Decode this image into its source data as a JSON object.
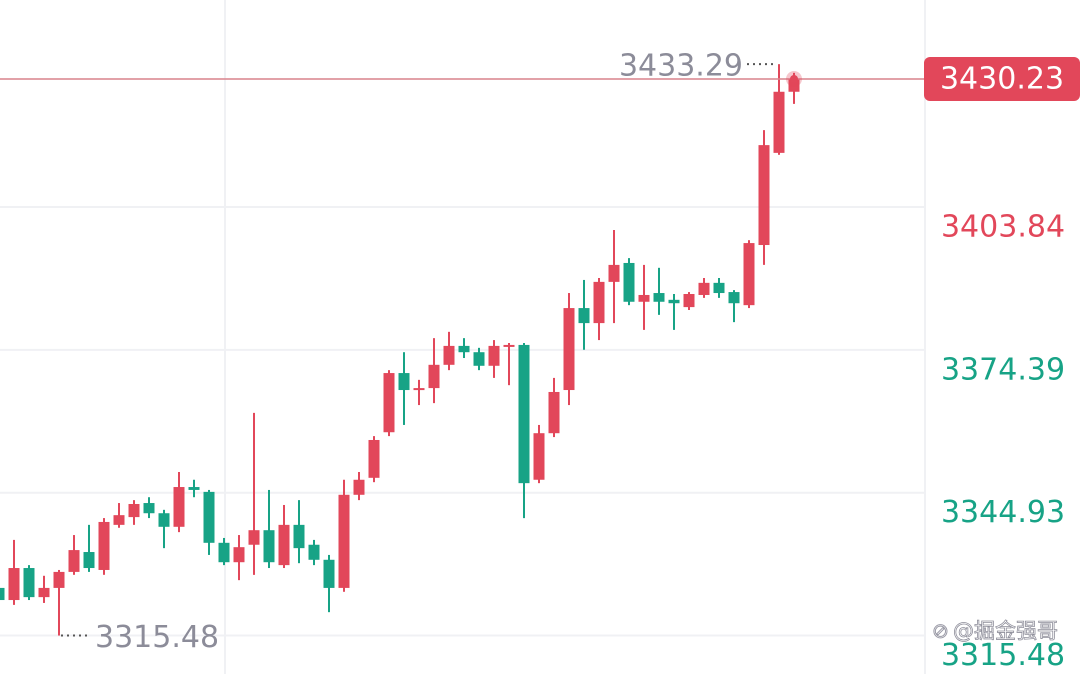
{
  "chart_data": {
    "type": "candlestick",
    "up_color": "#e2475a",
    "down_color": "#17a386",
    "ylim": [
      3307.55,
      3446.52
    ],
    "yticks": [
      3315.48,
      3344.93,
      3374.39,
      3403.84
    ],
    "ytick_colors": [
      "#17a386",
      "#17a386",
      "#17a386",
      "#e2475a"
    ],
    "grid": true,
    "last_price": 3430.23,
    "high_annotation": 3433.29,
    "low_annotation": 3315.48,
    "watermark": "@掘金强哥",
    "open": [
      3325.3,
      3322.8,
      3329.4,
      3323.4,
      3325.3,
      3328.6,
      3332.7,
      3329.0,
      3338.3,
      3339.9,
      3342.8,
      3340.7,
      3337.9,
      3346.1,
      3345.1,
      3334.6,
      3330.6,
      3334.2,
      3337.2,
      3330.0,
      3338.3,
      3334.2,
      3331.1,
      3325.3,
      3344.5,
      3348.0,
      3357.4,
      3369.6,
      3366.1,
      3366.5,
      3371.3,
      3375.2,
      3373.9,
      3371.1,
      3375.2,
      3375.4,
      3347.6,
      3357.2,
      3366.1,
      3383.0,
      3379.9,
      3388.4,
      3392.3,
      3384.3,
      3386.1,
      3384.7,
      3383.2,
      3385.7,
      3388.2,
      3386.3,
      3383.6,
      3396.0,
      3415.0,
      3427.6
    ],
    "high": [
      3325.9,
      3335.2,
      3330.0,
      3327.8,
      3329.0,
      3336.2,
      3338.3,
      3339.7,
      3342.8,
      3343.4,
      3344.0,
      3341.4,
      3349.2,
      3347.6,
      3345.5,
      3335.6,
      3336.2,
      3361.4,
      3345.5,
      3342.4,
      3343.4,
      3335.2,
      3332.1,
      3347.6,
      3349.2,
      3356.6,
      3370.2,
      3373.9,
      3368.2,
      3376.8,
      3378.1,
      3376.8,
      3374.8,
      3376.4,
      3375.8,
      3375.8,
      3358.9,
      3368.6,
      3386.1,
      3388.8,
      3389.2,
      3399.1,
      3393.3,
      3391.9,
      3391.3,
      3385.9,
      3386.3,
      3389.2,
      3389.2,
      3386.7,
      3397.0,
      3419.7,
      3433.29,
      3431.5
    ],
    "low": [
      3320.7,
      3321.8,
      3322.8,
      3322.2,
      3315.48,
      3328.0,
      3328.6,
      3328.0,
      3337.7,
      3338.3,
      3339.7,
      3333.5,
      3336.8,
      3344.0,
      3332.1,
      3330.0,
      3326.9,
      3328.0,
      3329.4,
      3329.4,
      3330.4,
      3330.0,
      3320.3,
      3324.5,
      3343.4,
      3347.1,
      3356.6,
      3358.9,
      3363.0,
      3363.4,
      3370.2,
      3372.7,
      3370.2,
      3368.6,
      3367.1,
      3339.7,
      3346.9,
      3356.4,
      3363.0,
      3374.4,
      3376.4,
      3379.9,
      3383.6,
      3378.5,
      3381.6,
      3378.5,
      3382.6,
      3385.1,
      3385.1,
      3380.1,
      3383.0,
      3391.9,
      3414.6,
      3425.1
    ],
    "close": [
      3322.8,
      3329.4,
      3323.4,
      3325.3,
      3328.6,
      3333.1,
      3329.4,
      3338.9,
      3340.3,
      3342.6,
      3340.7,
      3337.9,
      3346.1,
      3345.5,
      3334.6,
      3330.6,
      3333.7,
      3337.2,
      3330.6,
      3338.3,
      3333.5,
      3331.1,
      3325.3,
      3344.5,
      3347.6,
      3355.8,
      3369.6,
      3366.1,
      3366.5,
      3371.3,
      3375.2,
      3373.9,
      3371.1,
      3375.2,
      3375.4,
      3346.9,
      3357.2,
      3365.7,
      3383.0,
      3379.9,
      3388.4,
      3391.9,
      3384.3,
      3385.7,
      3384.3,
      3384.0,
      3385.9,
      3388.2,
      3386.1,
      3384.0,
      3396.4,
      3416.6,
      3427.6,
      3430.23
    ]
  }
}
